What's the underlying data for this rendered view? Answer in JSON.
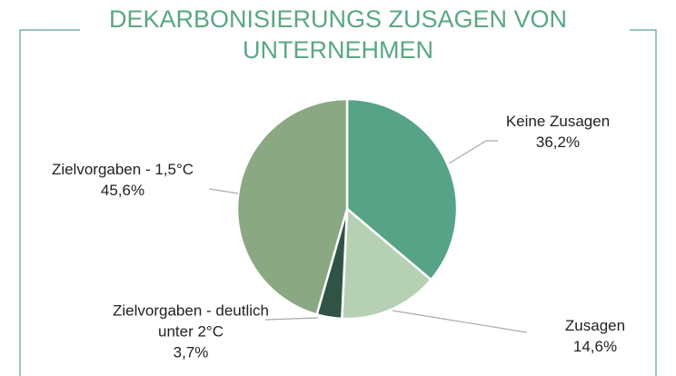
{
  "chart_data": {
    "type": "pie",
    "title": "DEKARBONISIERUNGS ZUSAGEN VON UNTERNEHMEN",
    "categories": [
      "Keine Zusagen",
      "Zusagen",
      "Zielvorgaben - deutlich unter 2°C",
      "Zielvorgaben - 1,5°C"
    ],
    "values": [
      36.2,
      14.6,
      3.7,
      45.6
    ],
    "value_labels": [
      "36,2%",
      "14,6%",
      "3,7%",
      "45,6%"
    ],
    "colors": [
      "#56a386",
      "#b6d0b3",
      "#2f5446",
      "#8aa882"
    ]
  }
}
